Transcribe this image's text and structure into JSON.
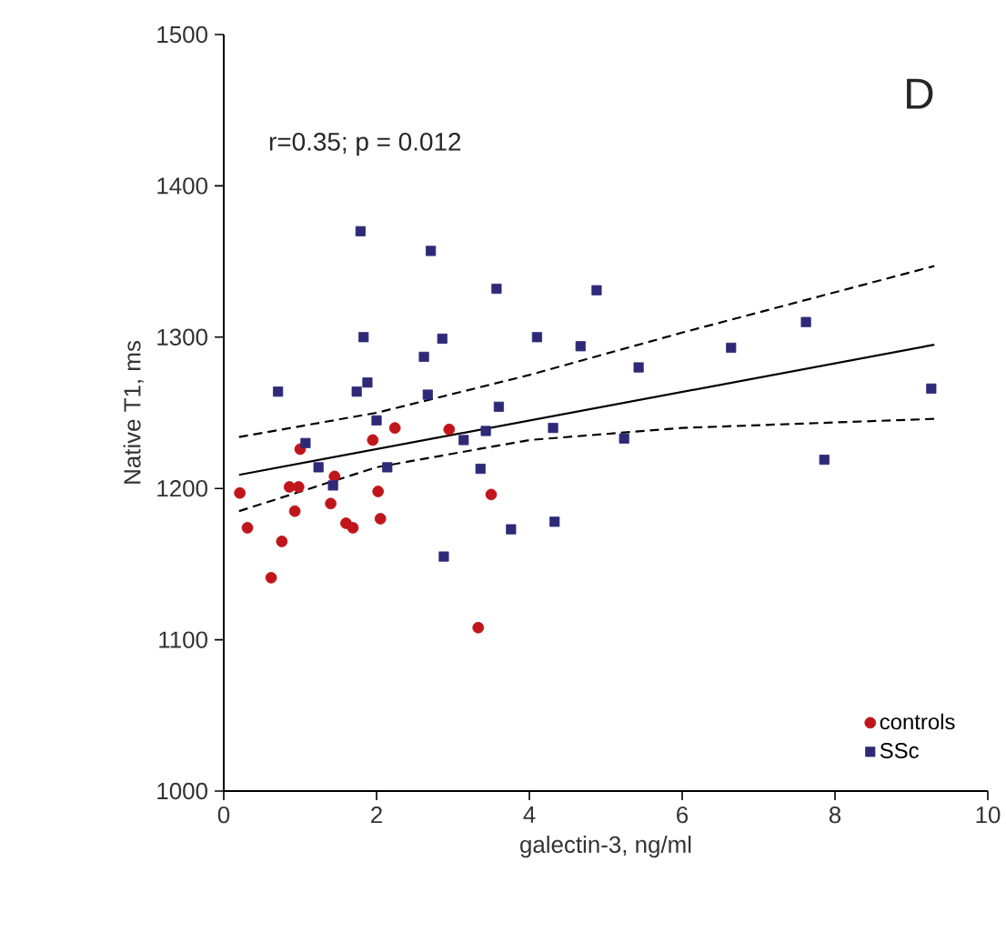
{
  "chart_data": {
    "type": "scatter",
    "xlabel": "galectin-3, ng/ml",
    "ylabel": "Native T1, ms",
    "annotations": [
      "D",
      "r=0.35; p = 0.012"
    ],
    "xlim": [
      0,
      10
    ],
    "xticks": [
      0,
      2,
      4,
      6,
      8,
      10
    ],
    "ylim": [
      1000,
      1500
    ],
    "yticks": [
      1000,
      1100,
      1200,
      1300,
      1400,
      1500
    ],
    "grid": false,
    "legend": "bottom right",
    "series": [
      {
        "name": "controls",
        "color": "#c0161b",
        "marker": "circle",
        "x": [
          0.21,
          0.31,
          0.62,
          0.76,
          0.86,
          0.98,
          0.93,
          1.0,
          1.4,
          1.45,
          1.6,
          1.69,
          1.95,
          2.02,
          2.05,
          2.24,
          2.95,
          3.5,
          3.33
        ],
        "values": [
          1197,
          1174,
          1141,
          1165,
          1201,
          1201,
          1185,
          1226,
          1190,
          1208,
          1177,
          1174,
          1232,
          1198,
          1180,
          1240,
          1239,
          1196,
          1108
        ]
      },
      {
        "name": "SSc",
        "color": "#2e2a78",
        "marker": "square",
        "x": [
          1.79,
          2.71,
          3.57,
          1.83,
          2.86,
          2.62,
          0.71,
          1.74,
          1.88,
          2.67,
          3.6,
          2.0,
          1.07,
          3.14,
          3.43,
          1.24,
          2.14,
          3.36,
          1.43,
          3.76,
          2.88,
          4.88,
          4.1,
          4.67,
          5.43,
          6.64,
          7.62,
          9.26,
          4.31,
          5.24,
          7.86,
          4.33
        ],
        "values": [
          1370,
          1357,
          1332,
          1300,
          1299,
          1287,
          1264,
          1264,
          1270,
          1262,
          1254,
          1245,
          1230,
          1232,
          1238,
          1214,
          1214,
          1213,
          1202,
          1173,
          1155,
          1331,
          1300,
          1294,
          1280,
          1293,
          1310,
          1266,
          1240,
          1233,
          1219,
          1178
        ]
      },
      {
        "type": "line",
        "color": "#000000",
        "line_style": "solid",
        "x": [
          0.2,
          9.3
        ],
        "values": [
          1209,
          1295
        ]
      },
      {
        "type": "line",
        "color": "#000000",
        "line_style": "dashed",
        "x": [
          0.2,
          2,
          4,
          6,
          9.3
        ],
        "values": [
          1234,
          1250,
          1275,
          1303,
          1347
        ]
      },
      {
        "type": "line",
        "color": "#000000",
        "line_style": "dashed",
        "x": [
          0.2,
          2,
          4,
          6,
          9.3
        ],
        "values": [
          1185,
          1214,
          1232,
          1240,
          1246
        ]
      }
    ]
  }
}
